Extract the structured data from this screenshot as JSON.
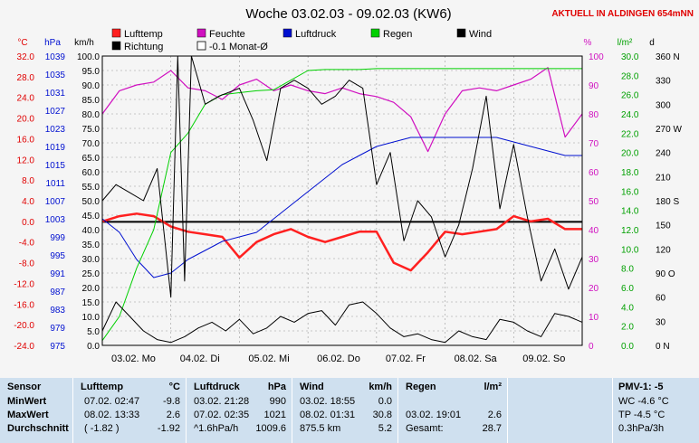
{
  "header": {
    "title": "Woche 03.02.03 - 09.02.03 (KW6)",
    "live": "AKTUELL IN ALDINGEN 654mNN"
  },
  "colors": {
    "temp": "#ff2020",
    "humidity": "#d010c0",
    "pressure": "#0010d0",
    "rain": "#00d000",
    "wind": "#000000",
    "direction": "#000000",
    "background": "#f5f5f5"
  },
  "legend": [
    {
      "label": "Lufttemp",
      "color": "#ff2020"
    },
    {
      "label": "Feuchte",
      "color": "#d010c0"
    },
    {
      "label": "Luftdruck",
      "color": "#0010d0"
    },
    {
      "label": "Regen",
      "color": "#00d000"
    },
    {
      "label": "Wind",
      "color": "#000000"
    },
    {
      "label": "Richtung",
      "color": "#000000"
    },
    {
      "label": "-0.1 Monat-Ø",
      "color": "#ffffff"
    }
  ],
  "chart_data": {
    "type": "line",
    "x_ticks": [
      "03.02. Mo",
      "04.02. Di",
      "05.02. Mi",
      "06.02. Do",
      "07.02. Fr",
      "08.02. Sa",
      "09.02. So"
    ],
    "axes": {
      "temp": {
        "unit": "°C",
        "range": [
          -24,
          32
        ],
        "ticks": [
          "32.0",
          "28.0",
          "24.0",
          "20.0",
          "16.0",
          "12.0",
          "8.0",
          "4.0",
          "0.0",
          "-4.0",
          "-8.0",
          "-12.0",
          "-16.0",
          "-20.0",
          "-24.0"
        ]
      },
      "pressure": {
        "unit": "hPa",
        "range": [
          975,
          1039
        ],
        "ticks": [
          "1039",
          "1035",
          "1031",
          "1027",
          "1023",
          "1019",
          "1015",
          "1011",
          "1007",
          "1003",
          "999",
          "995",
          "991",
          "987",
          "983",
          "979",
          "975"
        ]
      },
      "wind": {
        "unit": "km/h",
        "range": [
          0,
          100
        ],
        "ticks": [
          "100.0",
          "95.0",
          "90.0",
          "85.0",
          "80.0",
          "75.0",
          "70.0",
          "65.0",
          "60.0",
          "55.0",
          "50.0",
          "45.0",
          "40.0",
          "35.0",
          "30.0",
          "25.0",
          "20.0",
          "15.0",
          "10.0",
          "5.0",
          "0.0"
        ]
      },
      "humidity": {
        "unit": "%",
        "range": [
          0,
          100
        ],
        "ticks": [
          "100",
          "90",
          "80",
          "70",
          "60",
          "50",
          "40",
          "30",
          "20",
          "10",
          "0"
        ]
      },
      "rain": {
        "unit": "l/m²",
        "range": [
          0,
          30
        ],
        "ticks": [
          "30.0",
          "28.0",
          "26.0",
          "24.0",
          "22.0",
          "20.0",
          "18.0",
          "16.0",
          "14.0",
          "12.0",
          "10.0",
          "8.0",
          "6.0",
          "4.0",
          "2.0",
          "0.0"
        ]
      },
      "direction": {
        "unit": "",
        "range": [
          0,
          360
        ],
        "ticks": [
          "360 N",
          "330",
          "300",
          "270 W",
          "240",
          "210",
          "180 S",
          "150",
          "120",
          "90 O",
          "60",
          "30",
          "0 N"
        ]
      }
    },
    "monthly_mean_temp": -0.1,
    "series": [
      {
        "name": "Lufttemp",
        "axis": "temp",
        "color": "#ff2020",
        "x": [
          0,
          0.25,
          0.5,
          0.75,
          1,
          1.25,
          1.5,
          1.75,
          2,
          2.25,
          2.5,
          2.75,
          3,
          3.25,
          3.5,
          3.75,
          4,
          4.25,
          4.5,
          4.75,
          5,
          5.25,
          5.5,
          5.75,
          6,
          6.25,
          6.5,
          6.75,
          7
        ],
        "y": [
          0,
          1,
          1.5,
          1,
          -1,
          -2,
          -2.5,
          -3,
          -7,
          -4,
          -2.5,
          -1.5,
          -3,
          -4,
          -3,
          -2,
          -2,
          -8,
          -9.5,
          -6,
          -2,
          -2.5,
          -2,
          -1.5,
          1,
          0,
          0.5,
          -1.5,
          -1.5
        ]
      },
      {
        "name": "Feuchte",
        "axis": "humidity",
        "color": "#d010c0",
        "x": [
          0,
          0.25,
          0.5,
          0.75,
          1,
          1.25,
          1.5,
          1.75,
          2,
          2.25,
          2.5,
          2.75,
          3,
          3.25,
          3.5,
          3.75,
          4,
          4.25,
          4.5,
          4.75,
          5,
          5.25,
          5.5,
          5.75,
          6,
          6.25,
          6.5,
          6.75,
          7
        ],
        "y": [
          80,
          88,
          90,
          91,
          95,
          89,
          88,
          85,
          90,
          92,
          88,
          90,
          88,
          87,
          89,
          87,
          86,
          84,
          79,
          67,
          80,
          88,
          89,
          88,
          90,
          92,
          96,
          72,
          80
        ]
      },
      {
        "name": "Luftdruck",
        "axis": "pressure",
        "color": "#0010d0",
        "x": [
          0,
          0.25,
          0.5,
          0.75,
          1,
          1.25,
          1.5,
          1.75,
          2,
          2.25,
          2.5,
          2.75,
          3,
          3.25,
          3.5,
          3.75,
          4,
          4.25,
          4.5,
          4.75,
          5,
          5.25,
          5.5,
          5.75,
          6,
          6.25,
          6.5,
          6.75,
          7
        ],
        "y": [
          1003,
          1000,
          994,
          990,
          991,
          994,
          996,
          998,
          999,
          1000,
          1003,
          1006,
          1009,
          1012,
          1015,
          1017,
          1019,
          1020,
          1021,
          1021,
          1021,
          1021,
          1021,
          1021,
          1020,
          1019,
          1018,
          1017,
          1017
        ]
      },
      {
        "name": "Regen",
        "axis": "rain",
        "color": "#00d000",
        "x": [
          0,
          0.25,
          0.5,
          0.75,
          1,
          1.25,
          1.5,
          1.75,
          2,
          2.25,
          2.5,
          2.75,
          3,
          3.25,
          3.5,
          3.75,
          4,
          4.25,
          4.5,
          4.75,
          5,
          5.25,
          5.5,
          5.75,
          6,
          6.25,
          6.5,
          6.75,
          7
        ],
        "y": [
          0.5,
          3,
          8,
          12,
          20,
          22,
          25,
          26,
          26.2,
          26.4,
          26.5,
          27.5,
          28.5,
          28.6,
          28.6,
          28.6,
          28.7,
          28.7,
          28.7,
          28.7,
          28.7,
          28.7,
          28.7,
          28.7,
          28.7,
          28.7,
          28.7,
          28.7,
          28.7
        ]
      },
      {
        "name": "Wind",
        "axis": "wind",
        "color": "#000000",
        "x": [
          0,
          0.2,
          0.4,
          0.6,
          0.8,
          1,
          1.2,
          1.4,
          1.6,
          1.8,
          2,
          2.2,
          2.4,
          2.6,
          2.8,
          3,
          3.2,
          3.4,
          3.6,
          3.8,
          4,
          4.2,
          4.4,
          4.6,
          4.8,
          5,
          5.2,
          5.4,
          5.6,
          5.8,
          6,
          6.2,
          6.4,
          6.6,
          6.8,
          7
        ],
        "y": [
          5,
          15,
          10,
          5,
          2,
          1,
          3,
          6,
          8,
          5,
          9,
          4,
          6,
          10,
          8,
          11,
          12,
          7,
          14,
          15,
          11,
          6,
          3,
          4,
          2,
          1,
          5,
          3,
          2,
          9,
          8,
          5,
          3,
          11,
          10,
          8
        ]
      },
      {
        "name": "Richtung",
        "axis": "direction",
        "color": "#000000",
        "x": [
          0,
          0.2,
          0.4,
          0.6,
          0.8,
          1,
          1.1,
          1.2,
          1.3,
          1.5,
          1.7,
          2,
          2.2,
          2.4,
          2.6,
          2.8,
          3,
          3.2,
          3.4,
          3.6,
          3.8,
          4,
          4.2,
          4.4,
          4.6,
          4.8,
          5,
          5.2,
          5.4,
          5.6,
          5.8,
          6,
          6.2,
          6.4,
          6.6,
          6.8,
          7
        ],
        "y": [
          180,
          200,
          190,
          180,
          220,
          60,
          360,
          80,
          360,
          300,
          310,
          320,
          280,
          230,
          320,
          330,
          320,
          300,
          310,
          330,
          320,
          200,
          240,
          130,
          180,
          160,
          110,
          150,
          220,
          310,
          170,
          250,
          160,
          80,
          120,
          70,
          110
        ]
      }
    ]
  },
  "panel": {
    "sensor": {
      "title": "Sensor",
      "rows": [
        "MinWert",
        "MaxWert",
        "Durchschnitt"
      ]
    },
    "temp": {
      "title": "Lufttemp",
      "unit": "°C",
      "min_time": "07.02.  02:47",
      "min_val": "-9.8",
      "max_time": "08.02.  13:33",
      "max_val": "2.6",
      "avg_note": "( -1.82 )",
      "avg_val": "-1.92"
    },
    "pressure": {
      "title": "Luftdruck",
      "unit": "hPa",
      "min_time": "03.02.  21:28",
      "min_val": "990",
      "max_time": "07.02.  02:35",
      "max_val": "1021",
      "trend": "^1.6hPa/h",
      "avg_val": "1009.6"
    },
    "wind": {
      "title": "Wind",
      "unit": "km/h",
      "min_time": "03.02.  18:55",
      "min_val": "0.0",
      "max_time": "08.02.  01:31",
      "max_val": "30.8",
      "run": "875.5 km",
      "avg_val": "5.2"
    },
    "rain": {
      "title": "Regen",
      "unit": "l/m²",
      "max_time": "03.02.  19:01",
      "max_val": "2.6",
      "total_label": "Gesamt:",
      "total_val": "28.7"
    },
    "pmv": {
      "title": "PMV-1: -5",
      "wc": "WC -4.6 °C",
      "tp": "TP -4.5 °C",
      "trend": "0.3hPa/3h"
    }
  }
}
